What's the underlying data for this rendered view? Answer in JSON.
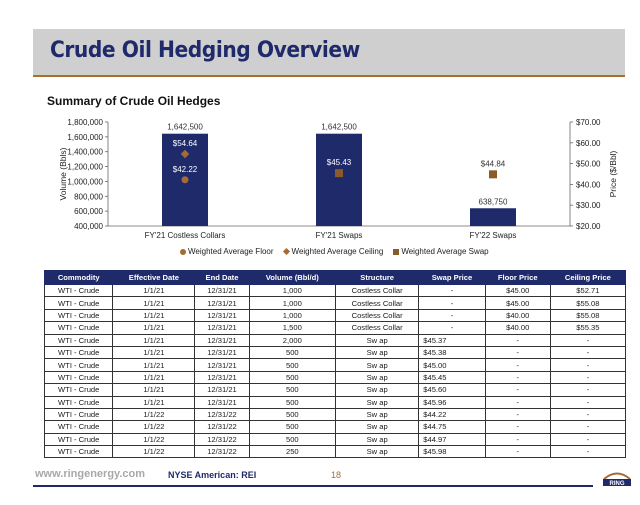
{
  "header": {
    "title": "Crude Oil Hedging Overview"
  },
  "section": {
    "subtitle": "Summary of Crude Oil Hedges"
  },
  "chart_data": {
    "type": "bar",
    "categories": [
      "FY'21 Costless Collars",
      "FY'21 Swaps",
      "FY'22 Swaps"
    ],
    "series": [
      {
        "name": "Volume",
        "axis": "left",
        "values": [
          1642500,
          1642500,
          638750
        ],
        "labels": [
          "1,642,500",
          "1,642,500",
          "638,750"
        ],
        "color": "#1f2a6b"
      },
      {
        "name": "Weighted Average Floor",
        "axis": "right",
        "marker": "circle",
        "values": [
          42.22,
          null,
          null
        ],
        "labels": [
          "$42.22",
          "",
          ""
        ],
        "color": "#a66a35"
      },
      {
        "name": "Weighted Average Ceiling",
        "axis": "right",
        "marker": "diamond",
        "values": [
          54.64,
          null,
          null
        ],
        "labels": [
          "$54.64",
          "",
          ""
        ],
        "color": "#a66a35"
      },
      {
        "name": "Weighted Average Swap",
        "axis": "right",
        "marker": "square",
        "values": [
          null,
          45.43,
          44.84
        ],
        "labels": [
          "",
          "$45.43",
          "$44.84"
        ],
        "color": "#8a5a2b"
      }
    ],
    "ylabel": "Volume (Bbls)",
    "y2label": "Price ($/Bbl)",
    "ylim": [
      400000,
      1800000
    ],
    "yticks": [
      "1,800,000",
      "1,600,000",
      "1,400,000",
      "1,200,000",
      "1,000,000",
      "800,000",
      "600,000",
      "400,000"
    ],
    "y2lim": [
      20,
      70
    ],
    "y2ticks": [
      "$70.00",
      "$60.00",
      "$50.00",
      "$40.00",
      "$30.00",
      "$20.00"
    ],
    "legend_position": "bottom"
  },
  "legend": {
    "floor": "Weighted Average Floor",
    "ceiling": "Weighted Average Ceiling",
    "swap": "Weighted Average Swap"
  },
  "table": {
    "headers": [
      "Commodity",
      "Effective Date",
      "End Date",
      "Volume (Bbl/d)",
      "Structure",
      "Swap Price",
      "Floor Price",
      "Ceiling Price"
    ],
    "rows": [
      [
        "WTI - Crude",
        "1/1/21",
        "12/31/21",
        "1,000",
        "Costless Collar",
        "-",
        "$45.00",
        "$52.71"
      ],
      [
        "WTI - Crude",
        "1/1/21",
        "12/31/21",
        "1,000",
        "Costless Collar",
        "-",
        "$45.00",
        "$55.08"
      ],
      [
        "WTI - Crude",
        "1/1/21",
        "12/31/21",
        "1,000",
        "Costless Collar",
        "-",
        "$40.00",
        "$55.08"
      ],
      [
        "WTI - Crude",
        "1/1/21",
        "12/31/21",
        "1,500",
        "Costless Collar",
        "-",
        "$40.00",
        "$55.35"
      ],
      [
        "WTI - Crude",
        "1/1/21",
        "12/31/21",
        "2,000",
        "Sw ap",
        "$45.37",
        "-",
        "-"
      ],
      [
        "WTI - Crude",
        "1/1/21",
        "12/31/21",
        "500",
        "Sw ap",
        "$45.38",
        "-",
        "-"
      ],
      [
        "WTI - Crude",
        "1/1/21",
        "12/31/21",
        "500",
        "Sw ap",
        "$45.00",
        "-",
        "-"
      ],
      [
        "WTI - Crude",
        "1/1/21",
        "12/31/21",
        "500",
        "Sw ap",
        "$45.45",
        "-",
        "-"
      ],
      [
        "WTI - Crude",
        "1/1/21",
        "12/31/21",
        "500",
        "Sw ap",
        "$45.60",
        "-",
        "-"
      ],
      [
        "WTI - Crude",
        "1/1/21",
        "12/31/21",
        "500",
        "Sw ap",
        "$45.96",
        "-",
        "-"
      ],
      [
        "WTI - Crude",
        "1/1/22",
        "12/31/22",
        "500",
        "Sw ap",
        "$44.22",
        "-",
        "-"
      ],
      [
        "WTI - Crude",
        "1/1/22",
        "12/31/22",
        "500",
        "Sw ap",
        "$44.75",
        "-",
        "-"
      ],
      [
        "WTI - Crude",
        "1/1/22",
        "12/31/22",
        "500",
        "Sw ap",
        "$44.97",
        "-",
        "-"
      ],
      [
        "WTI - Crude",
        "1/1/22",
        "12/31/22",
        "250",
        "Sw ap",
        "$45.98",
        "-",
        "-"
      ]
    ]
  },
  "footer": {
    "website": "www.ringenergy.com",
    "exchange": "NYSE American: REI",
    "page": "18",
    "logo_text": "RING"
  },
  "colors": {
    "navy": "#1f2a6b",
    "brown": "#a66a35",
    "band": "#cfcfcf"
  }
}
